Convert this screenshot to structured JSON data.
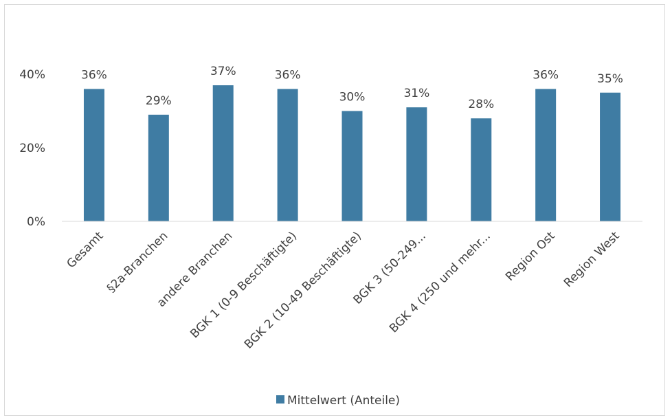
{
  "chart_data": {
    "type": "bar",
    "categories": [
      "Gesamt",
      "§2a-Branchen",
      "andere Branchen",
      "BGK 1 (0-9 Beschäftigte)",
      "BGK 2 (10-49 Beschäftigte)",
      "BGK 3 (50-249...",
      "BGK 4 (250 und mehr...",
      "Region Ost",
      "Region West"
    ],
    "series": [
      {
        "name": "Mittelwert (Anteile)",
        "values": [
          0.36,
          0.29,
          0.37,
          0.36,
          0.3,
          0.31,
          0.28,
          0.36,
          0.35
        ],
        "labels": [
          "36%",
          "29%",
          "37%",
          "36%",
          "30%",
          "31%",
          "28%",
          "36%",
          "35%"
        ],
        "color": "#3f7ca3"
      }
    ],
    "y_ticks": [
      "0%",
      "20%",
      "40%"
    ],
    "ylim": [
      0,
      0.5
    ],
    "grid": false,
    "legend": "bottom"
  }
}
